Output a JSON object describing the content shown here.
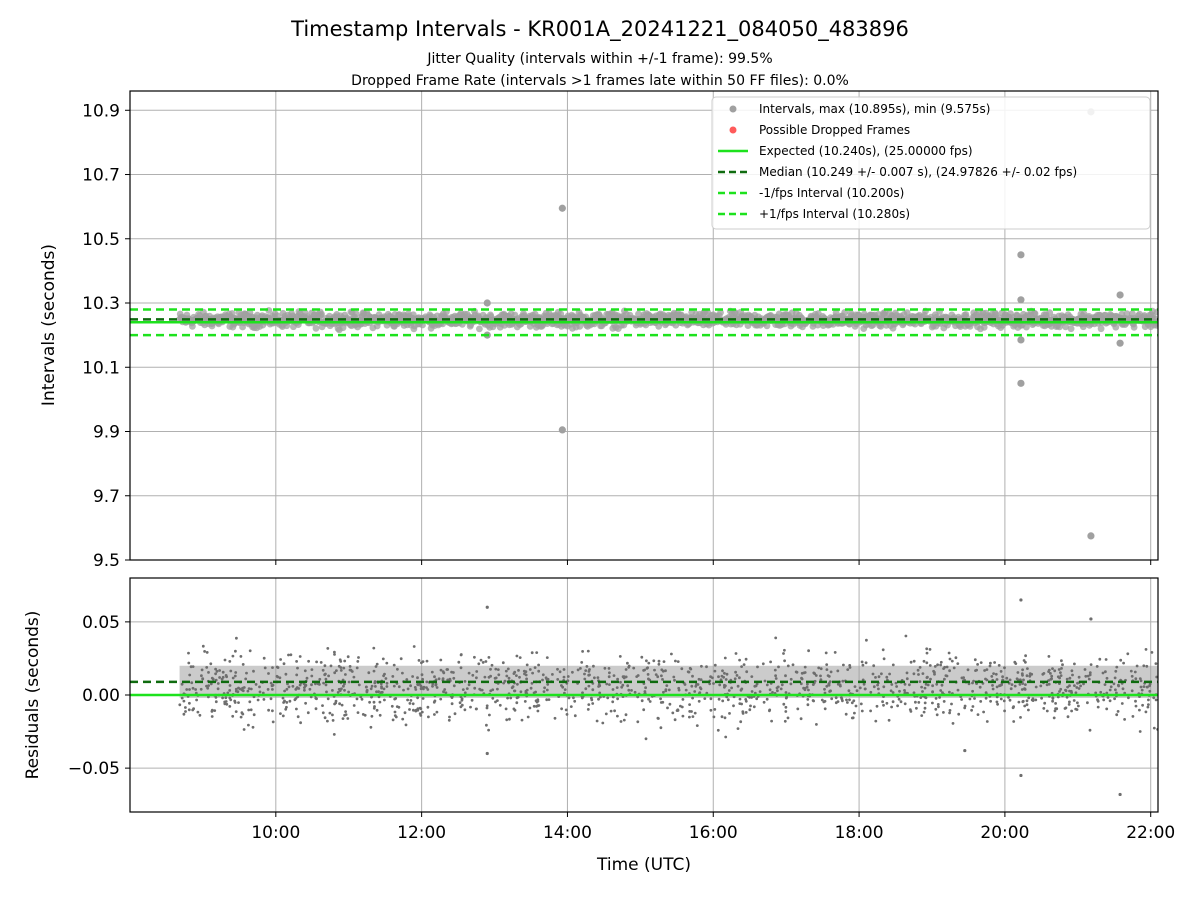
{
  "figure": {
    "title": "Timestamp Intervals - KR001A_20241221_084050_483896",
    "subtitle_1": "Jitter Quality (intervals within +/-1 frame): 99.5%",
    "subtitle_2": "Dropped Frame Rate (intervals >1 frames late within 50 FF files): 0.0%",
    "xlabel": "Time (UTC)"
  },
  "colors": {
    "points": "#a0a0a0",
    "residual_points": "#6e6e6e",
    "dropped": "#ff5a5a",
    "expected": "#1de21d",
    "median": "#0f6b0f",
    "fps_bounds": "#1de21d",
    "grid": "#b0b0b0"
  },
  "chart_data": [
    {
      "type": "scatter",
      "ylabel": "Intervals (seconds)",
      "x_unit": "hours UTC",
      "xlim": [
        8.0,
        22.1
      ],
      "ylim": [
        9.5,
        10.96
      ],
      "yticks": [
        "9.5",
        "9.7",
        "9.9",
        "10.1",
        "10.3",
        "10.5",
        "10.7",
        "10.9"
      ],
      "grid": true,
      "legend_position": "top-right",
      "legend": [
        "Intervals, max (10.895s), min (9.575s)",
        "Possible Dropped Frames",
        "Expected (10.240s), (25.00000 fps)",
        "Median (10.249 +/- 0.007 s), (24.97826 +/- 0.02 fps)",
        "-1/fps Interval (10.200s)",
        "+1/fps Interval (10.280s)"
      ],
      "expected": 10.24,
      "median": 10.249,
      "lower_bound": 10.2,
      "upper_bound": 10.28,
      "data_range": [
        8.68,
        22.1
      ],
      "main_band": [
        10.215,
        10.28
      ],
      "outliers": [
        {
          "x": 13.93,
          "y": 10.595
        },
        {
          "x": 13.93,
          "y": 9.905
        },
        {
          "x": 12.9,
          "y": 10.3
        },
        {
          "x": 12.9,
          "y": 10.2
        },
        {
          "x": 20.22,
          "y": 10.45
        },
        {
          "x": 20.22,
          "y": 10.31
        },
        {
          "x": 20.22,
          "y": 10.185
        },
        {
          "x": 20.22,
          "y": 10.05
        },
        {
          "x": 21.18,
          "y": 10.895
        },
        {
          "x": 21.18,
          "y": 9.575
        },
        {
          "x": 21.58,
          "y": 10.325
        },
        {
          "x": 21.58,
          "y": 10.175
        }
      ]
    },
    {
      "type": "scatter",
      "ylabel": "Residuals (seconds)",
      "xlim": [
        8.0,
        22.1
      ],
      "ylim": [
        -0.08,
        0.08
      ],
      "yticks": [
        "−0.05",
        "0.00",
        "0.05"
      ],
      "xticks": [
        "10:00",
        "12:00",
        "14:00",
        "16:00",
        "18:00",
        "20:00",
        "22:00"
      ],
      "grid": true,
      "expected_residual": 0.0,
      "median_residual": 0.009,
      "data_range": [
        8.68,
        22.1
      ],
      "core_band": [
        -0.002,
        0.02
      ],
      "scatter_band": [
        -0.035,
        0.045
      ],
      "outliers": [
        {
          "x": 12.9,
          "y": 0.06
        },
        {
          "x": 12.9,
          "y": -0.04
        },
        {
          "x": 20.22,
          "y": 0.065
        },
        {
          "x": 20.22,
          "y": -0.055
        },
        {
          "x": 21.58,
          "y": -0.068
        },
        {
          "x": 21.18,
          "y": 0.052
        },
        {
          "x": 19.45,
          "y": -0.038
        }
      ]
    }
  ]
}
